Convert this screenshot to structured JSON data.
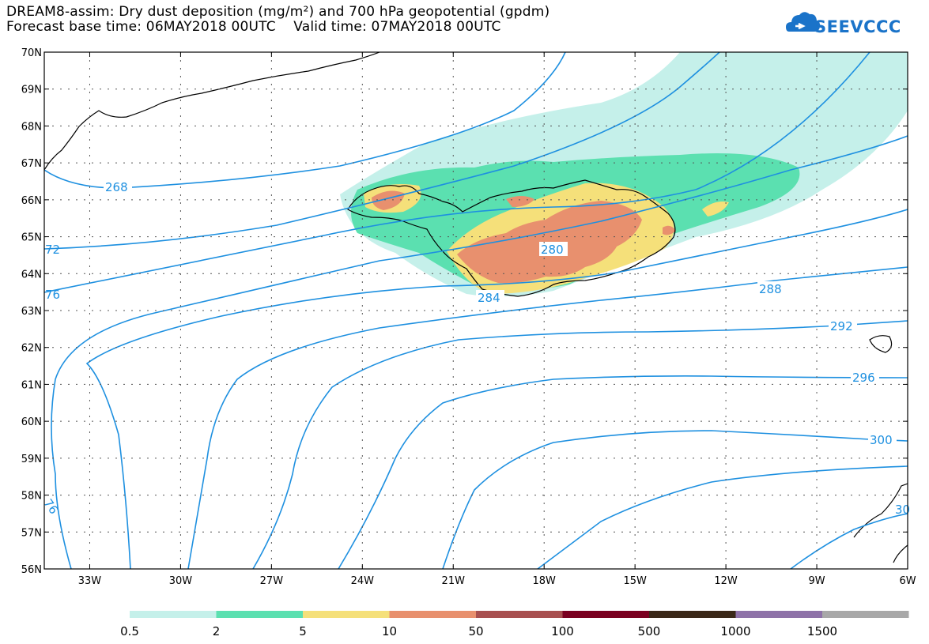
{
  "title_line1": "DREAM8-assim: Dry dust deposition (mg/m²) and 700 hPa geopotential (gpdm)",
  "title_line2": "Forecast base time: 06MAY2018 00UTC    Valid time: 07MAY2018 00UTC",
  "logo_text": "SEEVCCC",
  "logo_icon": "cloud-icon",
  "map": {
    "lon_range": [
      -34.5,
      -6
    ],
    "lat_range": [
      56,
      70
    ],
    "lat_labels": [
      "70N",
      "69N",
      "68N",
      "67N",
      "66N",
      "65N",
      "64N",
      "63N",
      "62N",
      "61N",
      "60N",
      "59N",
      "58N",
      "57N",
      "56N"
    ],
    "lon_labels": [
      "33W",
      "30W",
      "27W",
      "24W",
      "21W",
      "18W",
      "15W",
      "12W",
      "9W",
      "6W"
    ],
    "contour_color": "#1e90e0",
    "contour_labels": [
      {
        "text": "268"
      },
      {
        "text": "280"
      },
      {
        "text": "284"
      },
      {
        "text": "288"
      },
      {
        "text": "292"
      },
      {
        "text": "296"
      },
      {
        "text": "300"
      },
      {
        "text": "72"
      },
      {
        "text": "76"
      },
      {
        "text": "76"
      },
      {
        "text": "30"
      }
    ]
  },
  "legend": {
    "colors": [
      "#c5f0ea",
      "#5be0b0",
      "#f5e07a",
      "#e8906e",
      "#a85050",
      "#7a0020",
      "#3a2818",
      "#8e72a8",
      "#a8a8a8"
    ],
    "labels": [
      "0.5",
      "2",
      "5",
      "10",
      "50",
      "100",
      "500",
      "1000",
      "1500"
    ]
  }
}
